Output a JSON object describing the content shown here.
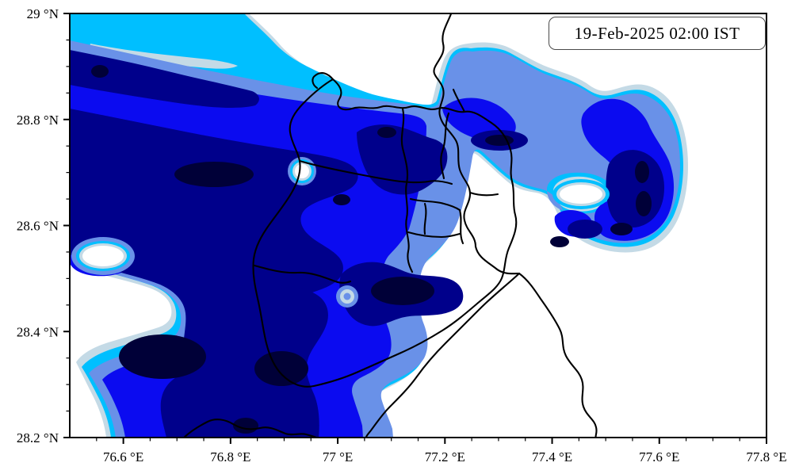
{
  "annotation": {
    "timestamp_label": "19-Feb-2025 02:00 IST"
  },
  "axes": {
    "x": {
      "range": [
        76.5,
        77.8
      ],
      "minor_step": 0.05,
      "ticks": [
        {
          "label": "76.6 °E",
          "value": 76.6
        },
        {
          "label": "76.8 °E",
          "value": 76.8
        },
        {
          "label": "77 °E",
          "value": 77.0
        },
        {
          "label": "77.2 °E",
          "value": 77.2
        },
        {
          "label": "77.4 °E",
          "value": 77.4
        },
        {
          "label": "77.6 °E",
          "value": 77.6
        },
        {
          "label": "77.8 °E",
          "value": 77.8
        }
      ]
    },
    "y": {
      "range": [
        28.2,
        29.0
      ],
      "minor_step": 0.05,
      "ticks": [
        {
          "label": "29 °N",
          "value": 29.0
        },
        {
          "label": "28.8 °N",
          "value": 28.8
        },
        {
          "label": "28.6 °N",
          "value": 28.6
        },
        {
          "label": "28.4 °N",
          "value": 28.4
        },
        {
          "label": "28.2 °N",
          "value": 28.2
        }
      ]
    }
  },
  "map": {
    "background": "#ffffff",
    "boundary_color": "#000000",
    "frame_color": "#000000",
    "fill_levels": [
      {
        "name": "level-1-pale",
        "color": "#c4dae6"
      },
      {
        "name": "level-2-cyan",
        "color": "#00bfff"
      },
      {
        "name": "level-3-cornflower",
        "color": "#6991e8"
      },
      {
        "name": "level-4-blue",
        "color": "#0b0bf0"
      },
      {
        "name": "level-5-navy",
        "color": "#00008b"
      },
      {
        "name": "level-6-darkest",
        "color": "#000038"
      }
    ]
  }
}
